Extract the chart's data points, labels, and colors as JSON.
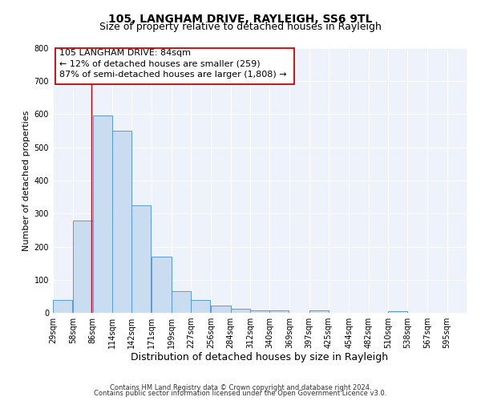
{
  "title": "105, LANGHAM DRIVE, RAYLEIGH, SS6 9TL",
  "subtitle": "Size of property relative to detached houses in Rayleigh",
  "xlabel": "Distribution of detached houses by size in Rayleigh",
  "ylabel": "Number of detached properties",
  "bar_left_edges": [
    29,
    58,
    86,
    114,
    142,
    171,
    199,
    227,
    256,
    284,
    312,
    340,
    369,
    397,
    425,
    454,
    482,
    510,
    538,
    567
  ],
  "bar_heights": [
    38,
    280,
    597,
    551,
    325,
    170,
    65,
    38,
    21,
    12,
    8,
    8,
    0,
    7,
    0,
    0,
    0,
    6,
    0,
    0
  ],
  "bin_width": 28,
  "tick_labels": [
    "29sqm",
    "58sqm",
    "86sqm",
    "114sqm",
    "142sqm",
    "171sqm",
    "199sqm",
    "227sqm",
    "256sqm",
    "284sqm",
    "312sqm",
    "340sqm",
    "369sqm",
    "397sqm",
    "425sqm",
    "454sqm",
    "482sqm",
    "510sqm",
    "538sqm",
    "567sqm",
    "595sqm"
  ],
  "tick_positions": [
    29,
    58,
    86,
    114,
    142,
    171,
    199,
    227,
    256,
    284,
    312,
    340,
    369,
    397,
    425,
    454,
    482,
    510,
    538,
    567,
    595
  ],
  "ylim": [
    0,
    800
  ],
  "yticks": [
    0,
    100,
    200,
    300,
    400,
    500,
    600,
    700,
    800
  ],
  "xlim_left": 29,
  "xlim_right": 623,
  "bar_color": "#c9dcf0",
  "bar_edge_color": "#5b9bd5",
  "background_color": "#eef2fb",
  "grid_color": "#ffffff",
  "vline_x": 84,
  "vline_color": "#cc0000",
  "ann_line1": "105 LANGHAM DRIVE: 84sqm",
  "ann_line2": "← 12% of detached houses are smaller (259)",
  "ann_line3": "87% of semi-detached houses are larger (1,808) →",
  "footer_line1": "Contains HM Land Registry data © Crown copyright and database right 2024.",
  "footer_line2": "Contains public sector information licensed under the Open Government Licence v3.0.",
  "title_fontsize": 10,
  "subtitle_fontsize": 9,
  "xlabel_fontsize": 9,
  "ylabel_fontsize": 8,
  "tick_fontsize": 7,
  "annotation_fontsize": 8,
  "footer_fontsize": 6
}
